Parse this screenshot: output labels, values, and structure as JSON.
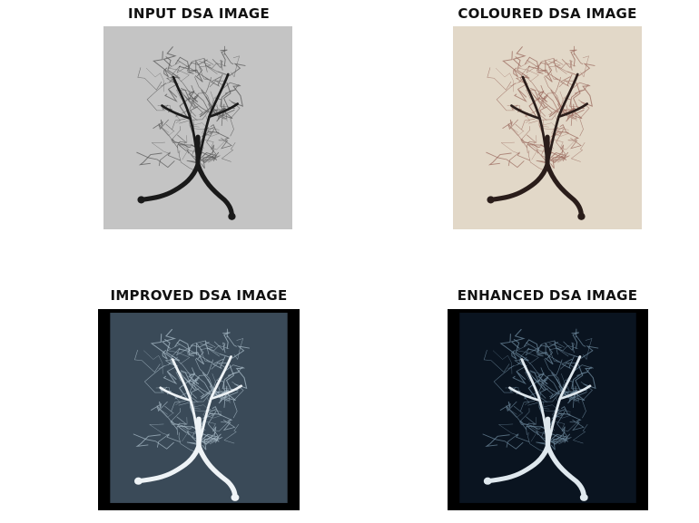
{
  "figure": {
    "panels": [
      {
        "id": "input",
        "title": "INPUT DSA IMAGE",
        "bg": "#c4c4c4",
        "vessel": "#1a1a1a",
        "fine": "#555555",
        "frame": "#ffffff"
      },
      {
        "id": "coloured",
        "title": "COLOURED DSA IMAGE",
        "bg": "#e2d8c8",
        "vessel": "#2a1d1a",
        "fine": "#9a6a5e",
        "frame": "#ffffff"
      },
      {
        "id": "improved",
        "title": "IMPROVED DSA IMAGE",
        "bg": "#3a4a58",
        "vessel": "#eef3f6",
        "fine": "#a9bcc8",
        "frame": "#000000"
      },
      {
        "id": "enhanced",
        "title": "ENHANCED DSA IMAGE",
        "bg": "#0a1420",
        "vessel": "#dfe8ee",
        "fine": "#6e8a9e",
        "frame": "#000000"
      }
    ]
  }
}
